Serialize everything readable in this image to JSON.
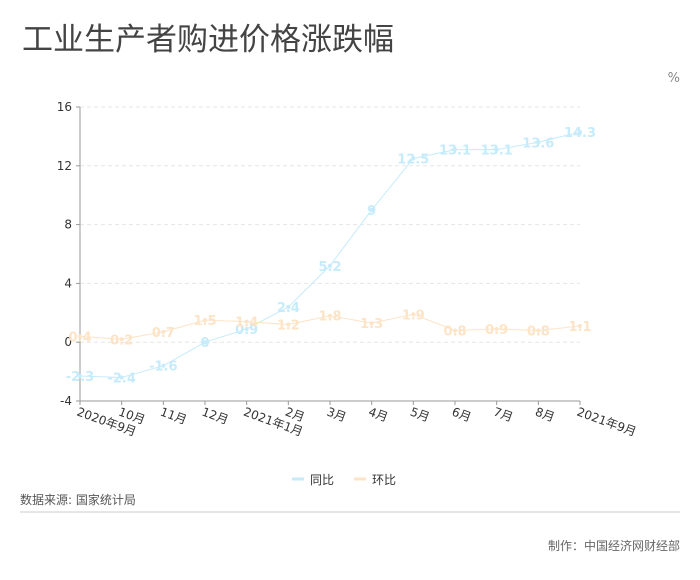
{
  "chart_data": {
    "type": "line",
    "title": "工业生产者购进价格涨跌幅",
    "unit": "%",
    "categories": [
      "2020年9月",
      "10月",
      "11月",
      "12月",
      "2021年1月",
      "2月",
      "3月",
      "4月",
      "5月",
      "6月",
      "7月",
      "8月",
      "2021年9月"
    ],
    "series": [
      {
        "name": "同比",
        "color": "#c6ebfb",
        "values": [
          -2.3,
          -2.4,
          -1.6,
          0,
          0.9,
          2.4,
          5.2,
          9,
          12.5,
          13.1,
          13.1,
          13.6,
          14.3
        ]
      },
      {
        "name": "环比",
        "color": "#fde4c6",
        "values": [
          0.4,
          0.2,
          0.7,
          1.5,
          1.4,
          1.2,
          1.8,
          1.3,
          1.9,
          0.8,
          0.9,
          0.8,
          1.1
        ]
      }
    ],
    "ylim": [
      -4,
      16
    ],
    "yticks": [
      -4,
      0,
      4,
      8,
      12,
      16
    ],
    "grid": true,
    "legend": "bottom",
    "source": "数据来源: 国家统计局",
    "credit": "制作：中国经济网财经部"
  }
}
